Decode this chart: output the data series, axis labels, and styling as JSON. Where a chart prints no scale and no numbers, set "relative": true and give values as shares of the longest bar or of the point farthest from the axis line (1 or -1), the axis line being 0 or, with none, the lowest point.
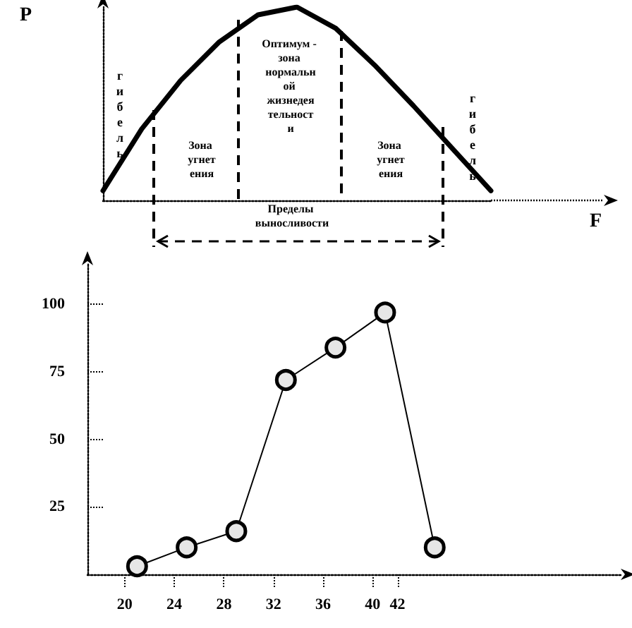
{
  "chart_data": [
    {
      "type": "line",
      "relative": true,
      "xlabel": "F",
      "ylabel": "P",
      "marker": "none",
      "categories": [
        null,
        null,
        null,
        null,
        null,
        null,
        null,
        null,
        null,
        null,
        null
      ],
      "series": [
        {
          "color": "#000000",
          "values": [
            0.05,
            0.37,
            0.62,
            0.82,
            0.96,
            1,
            0.89,
            0.7,
            0.49,
            0.27,
            0.05
          ]
        }
      ],
      "annotations": [
        "гибель",
        "Оптимум - зона нормальной жизнедеятельности",
        "Зона угнетения",
        "Зона угнетения",
        "гибель",
        "Пределы выносливости"
      ]
    },
    {
      "type": "line",
      "marker": "circle",
      "x": [
        21,
        25,
        29,
        33,
        37,
        41,
        45
      ],
      "series": [
        {
          "color": "#000000",
          "values": [
            3,
            10,
            16,
            72,
            84,
            97,
            10
          ]
        }
      ],
      "xlim": [
        17,
        60
      ],
      "xticks": [
        20,
        24,
        28,
        32,
        36,
        40,
        42
      ],
      "ylim": [
        0,
        115
      ],
      "yticks": [
        25,
        50,
        75,
        100
      ]
    }
  ]
}
